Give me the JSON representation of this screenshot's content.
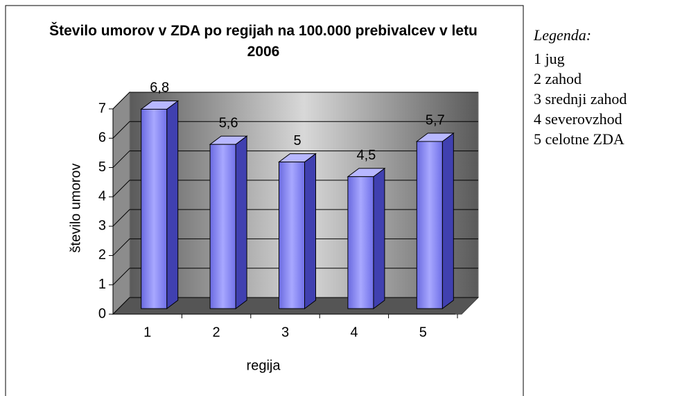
{
  "chart_data": {
    "type": "bar",
    "title": "Število umorov v ZDA po regijah na 100.000 prebivalcev v letu 2006",
    "x_label": "regija",
    "y_label": "število umorov",
    "categories": [
      "1",
      "2",
      "3",
      "4",
      "5"
    ],
    "values": [
      6.8,
      5.6,
      5,
      4.5,
      5.7
    ],
    "value_labels": [
      "6,8",
      "5,6",
      "5",
      "4,5",
      "5,7"
    ],
    "color": "#8080ff",
    "ylim": [
      0,
      7
    ],
    "yticks": [
      0,
      1,
      2,
      3,
      4,
      5,
      6,
      7
    ],
    "grid": true,
    "legend_title": "Legenda:",
    "legend_items": [
      "1 jug",
      "2 zahod",
      "3 srednji zahod",
      "4 severovzhod",
      "5 celotne ZDA"
    ]
  }
}
